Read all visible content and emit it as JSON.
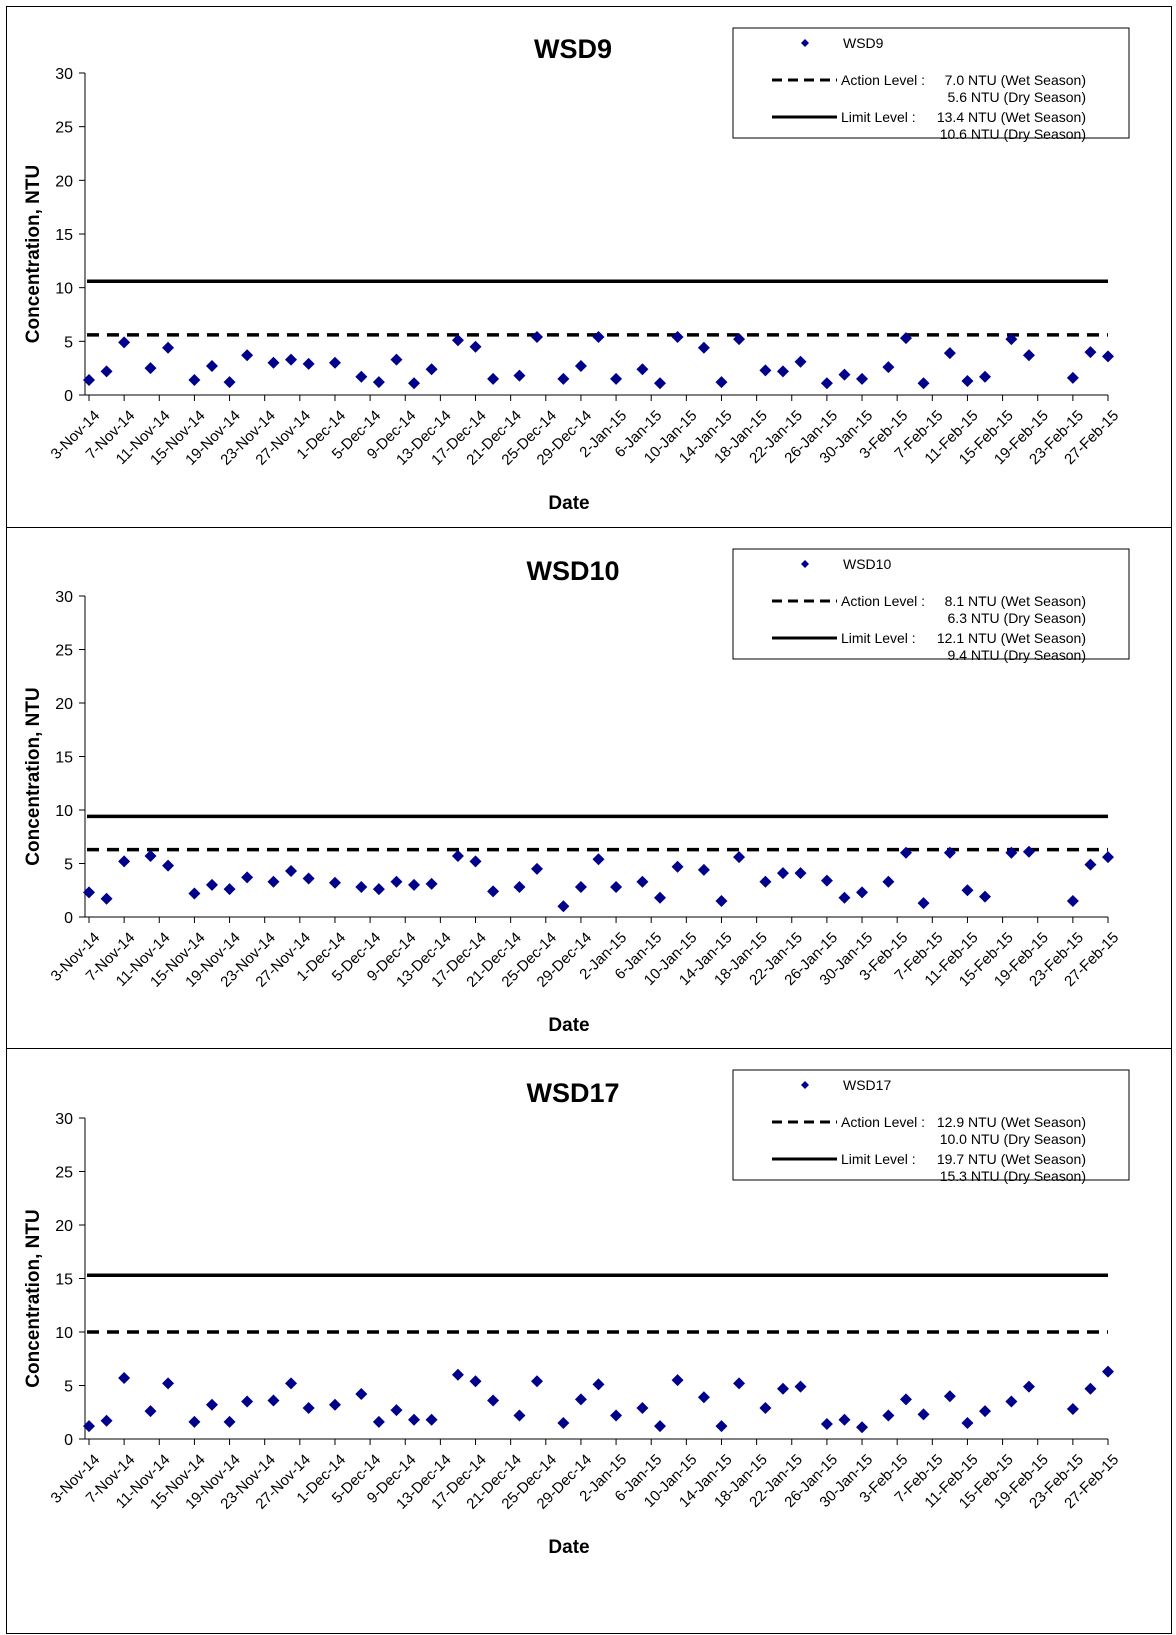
{
  "chart_data": [
    {
      "type": "scatter",
      "title": "WSD9",
      "xlabel": "Date",
      "ylabel": "Concentration, NTU",
      "ylim": [
        0,
        30
      ],
      "yticks": [
        "0",
        "5",
        "10",
        "15",
        "20",
        "25",
        "30"
      ],
      "xlim": [
        "2014-11-03",
        "2015-02-27"
      ],
      "xticks": [
        "3-Nov-14",
        "7-Nov-14",
        "11-Nov-14",
        "15-Nov-14",
        "19-Nov-14",
        "23-Nov-14",
        "27-Nov-14",
        "1-Dec-14",
        "5-Dec-14",
        "9-Dec-14",
        "13-Dec-14",
        "17-Dec-14",
        "21-Dec-14",
        "25-Dec-14",
        "29-Dec-14",
        "2-Jan-15",
        "6-Jan-15",
        "10-Jan-15",
        "14-Jan-15",
        "18-Jan-15",
        "22-Jan-15",
        "26-Jan-15",
        "30-Jan-15",
        "3-Feb-15",
        "7-Feb-15",
        "11-Feb-15",
        "15-Feb-15",
        "19-Feb-15",
        "23-Feb-15",
        "27-Feb-15"
      ],
      "series": [
        {
          "name": "WSD9",
          "color": "#00008B",
          "marker": "diamond",
          "x": [
            "2014-11-03",
            "2014-11-05",
            "2014-11-07",
            "2014-11-10",
            "2014-11-12",
            "2014-11-15",
            "2014-11-17",
            "2014-11-19",
            "2014-11-21",
            "2014-11-24",
            "2014-11-26",
            "2014-11-28",
            "2014-12-01",
            "2014-12-04",
            "2014-12-06",
            "2014-12-08",
            "2014-12-10",
            "2014-12-12",
            "2014-12-15",
            "2014-12-17",
            "2014-12-19",
            "2014-12-22",
            "2014-12-24",
            "2014-12-27",
            "2014-12-29",
            "2014-12-31",
            "2015-01-02",
            "2015-01-05",
            "2015-01-07",
            "2015-01-09",
            "2015-01-12",
            "2015-01-14",
            "2015-01-16",
            "2015-01-19",
            "2015-01-21",
            "2015-01-23",
            "2015-01-26",
            "2015-01-28",
            "2015-01-30",
            "2015-02-02",
            "2015-02-04",
            "2015-02-06",
            "2015-02-09",
            "2015-02-11",
            "2015-02-13",
            "2015-02-16",
            "2015-02-18",
            "2015-02-23",
            "2015-02-25",
            "2015-02-27"
          ],
          "y": [
            1.4,
            2.2,
            4.9,
            2.5,
            4.4,
            1.4,
            2.7,
            1.2,
            3.7,
            3.0,
            3.3,
            2.9,
            3.0,
            1.7,
            1.2,
            3.3,
            1.1,
            2.4,
            5.1,
            4.5,
            1.5,
            1.8,
            5.4,
            1.5,
            2.7,
            5.4,
            1.5,
            2.4,
            1.1,
            5.4,
            4.4,
            1.2,
            5.2,
            2.3,
            2.2,
            3.1,
            1.1,
            1.9,
            1.5,
            2.6,
            5.3,
            1.1,
            3.9,
            1.3,
            1.7,
            5.2,
            3.7,
            1.6,
            4.0,
            3.6
          ]
        }
      ],
      "lines": [
        {
          "style": "dashed",
          "value": 5.6,
          "label": "Action Level :",
          "text1": "7.0 NTU (Wet Season)",
          "text2": "5.6 NTU (Dry Season)"
        },
        {
          "style": "solid",
          "value": 10.6,
          "label": "Limit Level :",
          "text1": "13.4 NTU (Wet Season)",
          "text2": "10.6 NTU (Dry Season)"
        }
      ],
      "legend": "top-right",
      "grid": false
    },
    {
      "type": "scatter",
      "title": "WSD10",
      "xlabel": "Date",
      "ylabel": "Concentration, NTU",
      "ylim": [
        0,
        30
      ],
      "yticks": [
        "0",
        "5",
        "10",
        "15",
        "20",
        "25",
        "30"
      ],
      "xlim": [
        "2014-11-03",
        "2015-02-27"
      ],
      "xticks": [
        "3-Nov-14",
        "7-Nov-14",
        "11-Nov-14",
        "15-Nov-14",
        "19-Nov-14",
        "23-Nov-14",
        "27-Nov-14",
        "1-Dec-14",
        "5-Dec-14",
        "9-Dec-14",
        "13-Dec-14",
        "17-Dec-14",
        "21-Dec-14",
        "25-Dec-14",
        "29-Dec-14",
        "2-Jan-15",
        "6-Jan-15",
        "10-Jan-15",
        "14-Jan-15",
        "18-Jan-15",
        "22-Jan-15",
        "26-Jan-15",
        "30-Jan-15",
        "3-Feb-15",
        "7-Feb-15",
        "11-Feb-15",
        "15-Feb-15",
        "19-Feb-15",
        "23-Feb-15",
        "27-Feb-15"
      ],
      "series": [
        {
          "name": "WSD10",
          "color": "#00008B",
          "marker": "diamond",
          "x": [
            "2014-11-03",
            "2014-11-05",
            "2014-11-07",
            "2014-11-10",
            "2014-11-12",
            "2014-11-15",
            "2014-11-17",
            "2014-11-19",
            "2014-11-21",
            "2014-11-24",
            "2014-11-26",
            "2014-11-28",
            "2014-12-01",
            "2014-12-04",
            "2014-12-06",
            "2014-12-08",
            "2014-12-10",
            "2014-12-12",
            "2014-12-15",
            "2014-12-17",
            "2014-12-19",
            "2014-12-22",
            "2014-12-24",
            "2014-12-27",
            "2014-12-29",
            "2014-12-31",
            "2015-01-02",
            "2015-01-05",
            "2015-01-07",
            "2015-01-09",
            "2015-01-12",
            "2015-01-14",
            "2015-01-16",
            "2015-01-19",
            "2015-01-21",
            "2015-01-23",
            "2015-01-26",
            "2015-01-28",
            "2015-01-30",
            "2015-02-02",
            "2015-02-04",
            "2015-02-06",
            "2015-02-09",
            "2015-02-11",
            "2015-02-13",
            "2015-02-16",
            "2015-02-18",
            "2015-02-23",
            "2015-02-25",
            "2015-02-27"
          ],
          "y": [
            2.3,
            1.7,
            5.2,
            5.7,
            4.8,
            2.2,
            3.0,
            2.6,
            3.7,
            3.3,
            4.3,
            3.6,
            3.2,
            2.8,
            2.6,
            3.3,
            3.0,
            3.1,
            5.7,
            5.2,
            2.4,
            2.8,
            4.5,
            1.0,
            2.8,
            5.4,
            2.8,
            3.3,
            1.8,
            4.7,
            4.4,
            1.5,
            5.6,
            3.3,
            4.1,
            4.1,
            3.4,
            1.8,
            2.3,
            3.3,
            6.0,
            1.3,
            6.0,
            2.5,
            1.9,
            6.0,
            6.1,
            1.5,
            4.9,
            5.6
          ]
        }
      ],
      "lines": [
        {
          "style": "dashed",
          "value": 6.3,
          "label": "Action Level :",
          "text1": "8.1 NTU (Wet Season)",
          "text2": "6.3 NTU (Dry Season)"
        },
        {
          "style": "solid",
          "value": 9.4,
          "label": "Limit Level :",
          "text1": "12.1 NTU (Wet Season)",
          "text2": "9.4 NTU (Dry Season)"
        }
      ],
      "legend": "top-right",
      "grid": false
    },
    {
      "type": "scatter",
      "title": "WSD17",
      "xlabel": "Date",
      "ylabel": "Concentration, NTU",
      "ylim": [
        0,
        30
      ],
      "yticks": [
        "0",
        "5",
        "10",
        "15",
        "20",
        "25",
        "30"
      ],
      "xlim": [
        "2014-11-03",
        "2015-02-27"
      ],
      "xticks": [
        "3-Nov-14",
        "7-Nov-14",
        "11-Nov-14",
        "15-Nov-14",
        "19-Nov-14",
        "23-Nov-14",
        "27-Nov-14",
        "1-Dec-14",
        "5-Dec-14",
        "9-Dec-14",
        "13-Dec-14",
        "17-Dec-14",
        "21-Dec-14",
        "25-Dec-14",
        "29-Dec-14",
        "2-Jan-15",
        "6-Jan-15",
        "10-Jan-15",
        "14-Jan-15",
        "18-Jan-15",
        "22-Jan-15",
        "26-Jan-15",
        "30-Jan-15",
        "3-Feb-15",
        "7-Feb-15",
        "11-Feb-15",
        "15-Feb-15",
        "19-Feb-15",
        "23-Feb-15",
        "27-Feb-15"
      ],
      "series": [
        {
          "name": "WSD17",
          "color": "#00008B",
          "marker": "diamond",
          "x": [
            "2014-11-03",
            "2014-11-05",
            "2014-11-07",
            "2014-11-10",
            "2014-11-12",
            "2014-11-15",
            "2014-11-17",
            "2014-11-19",
            "2014-11-21",
            "2014-11-24",
            "2014-11-26",
            "2014-11-28",
            "2014-12-01",
            "2014-12-04",
            "2014-12-06",
            "2014-12-08",
            "2014-12-10",
            "2014-12-12",
            "2014-12-15",
            "2014-12-17",
            "2014-12-19",
            "2014-12-22",
            "2014-12-24",
            "2014-12-27",
            "2014-12-29",
            "2014-12-31",
            "2015-01-02",
            "2015-01-05",
            "2015-01-07",
            "2015-01-09",
            "2015-01-12",
            "2015-01-14",
            "2015-01-16",
            "2015-01-19",
            "2015-01-21",
            "2015-01-23",
            "2015-01-26",
            "2015-01-28",
            "2015-01-30",
            "2015-02-02",
            "2015-02-04",
            "2015-02-06",
            "2015-02-09",
            "2015-02-11",
            "2015-02-13",
            "2015-02-16",
            "2015-02-18",
            "2015-02-23",
            "2015-02-25",
            "2015-02-27"
          ],
          "y": [
            1.2,
            1.7,
            5.7,
            2.6,
            5.2,
            1.6,
            3.2,
            1.6,
            3.5,
            3.6,
            5.2,
            2.9,
            3.2,
            4.2,
            1.6,
            2.7,
            1.8,
            1.8,
            6.0,
            5.4,
            3.6,
            2.2,
            5.4,
            1.5,
            3.7,
            5.1,
            2.2,
            2.9,
            1.2,
            5.5,
            3.9,
            1.2,
            5.2,
            2.9,
            4.7,
            4.9,
            1.4,
            1.8,
            1.1,
            2.2,
            3.7,
            2.3,
            4.0,
            1.5,
            2.6,
            3.5,
            4.9,
            2.8,
            4.7,
            6.3
          ]
        }
      ],
      "lines": [
        {
          "style": "dashed",
          "value": 10.0,
          "label": "Action Level :",
          "text1": "12.9 NTU (Wet Season)",
          "text2": "10.0 NTU (Dry Season)"
        },
        {
          "style": "solid",
          "value": 15.3,
          "label": "Limit Level :",
          "text1": "19.7 NTU (Wet Season)",
          "text2": "15.3 NTU (Dry Season)"
        }
      ],
      "legend": "top-right",
      "grid": false
    }
  ]
}
